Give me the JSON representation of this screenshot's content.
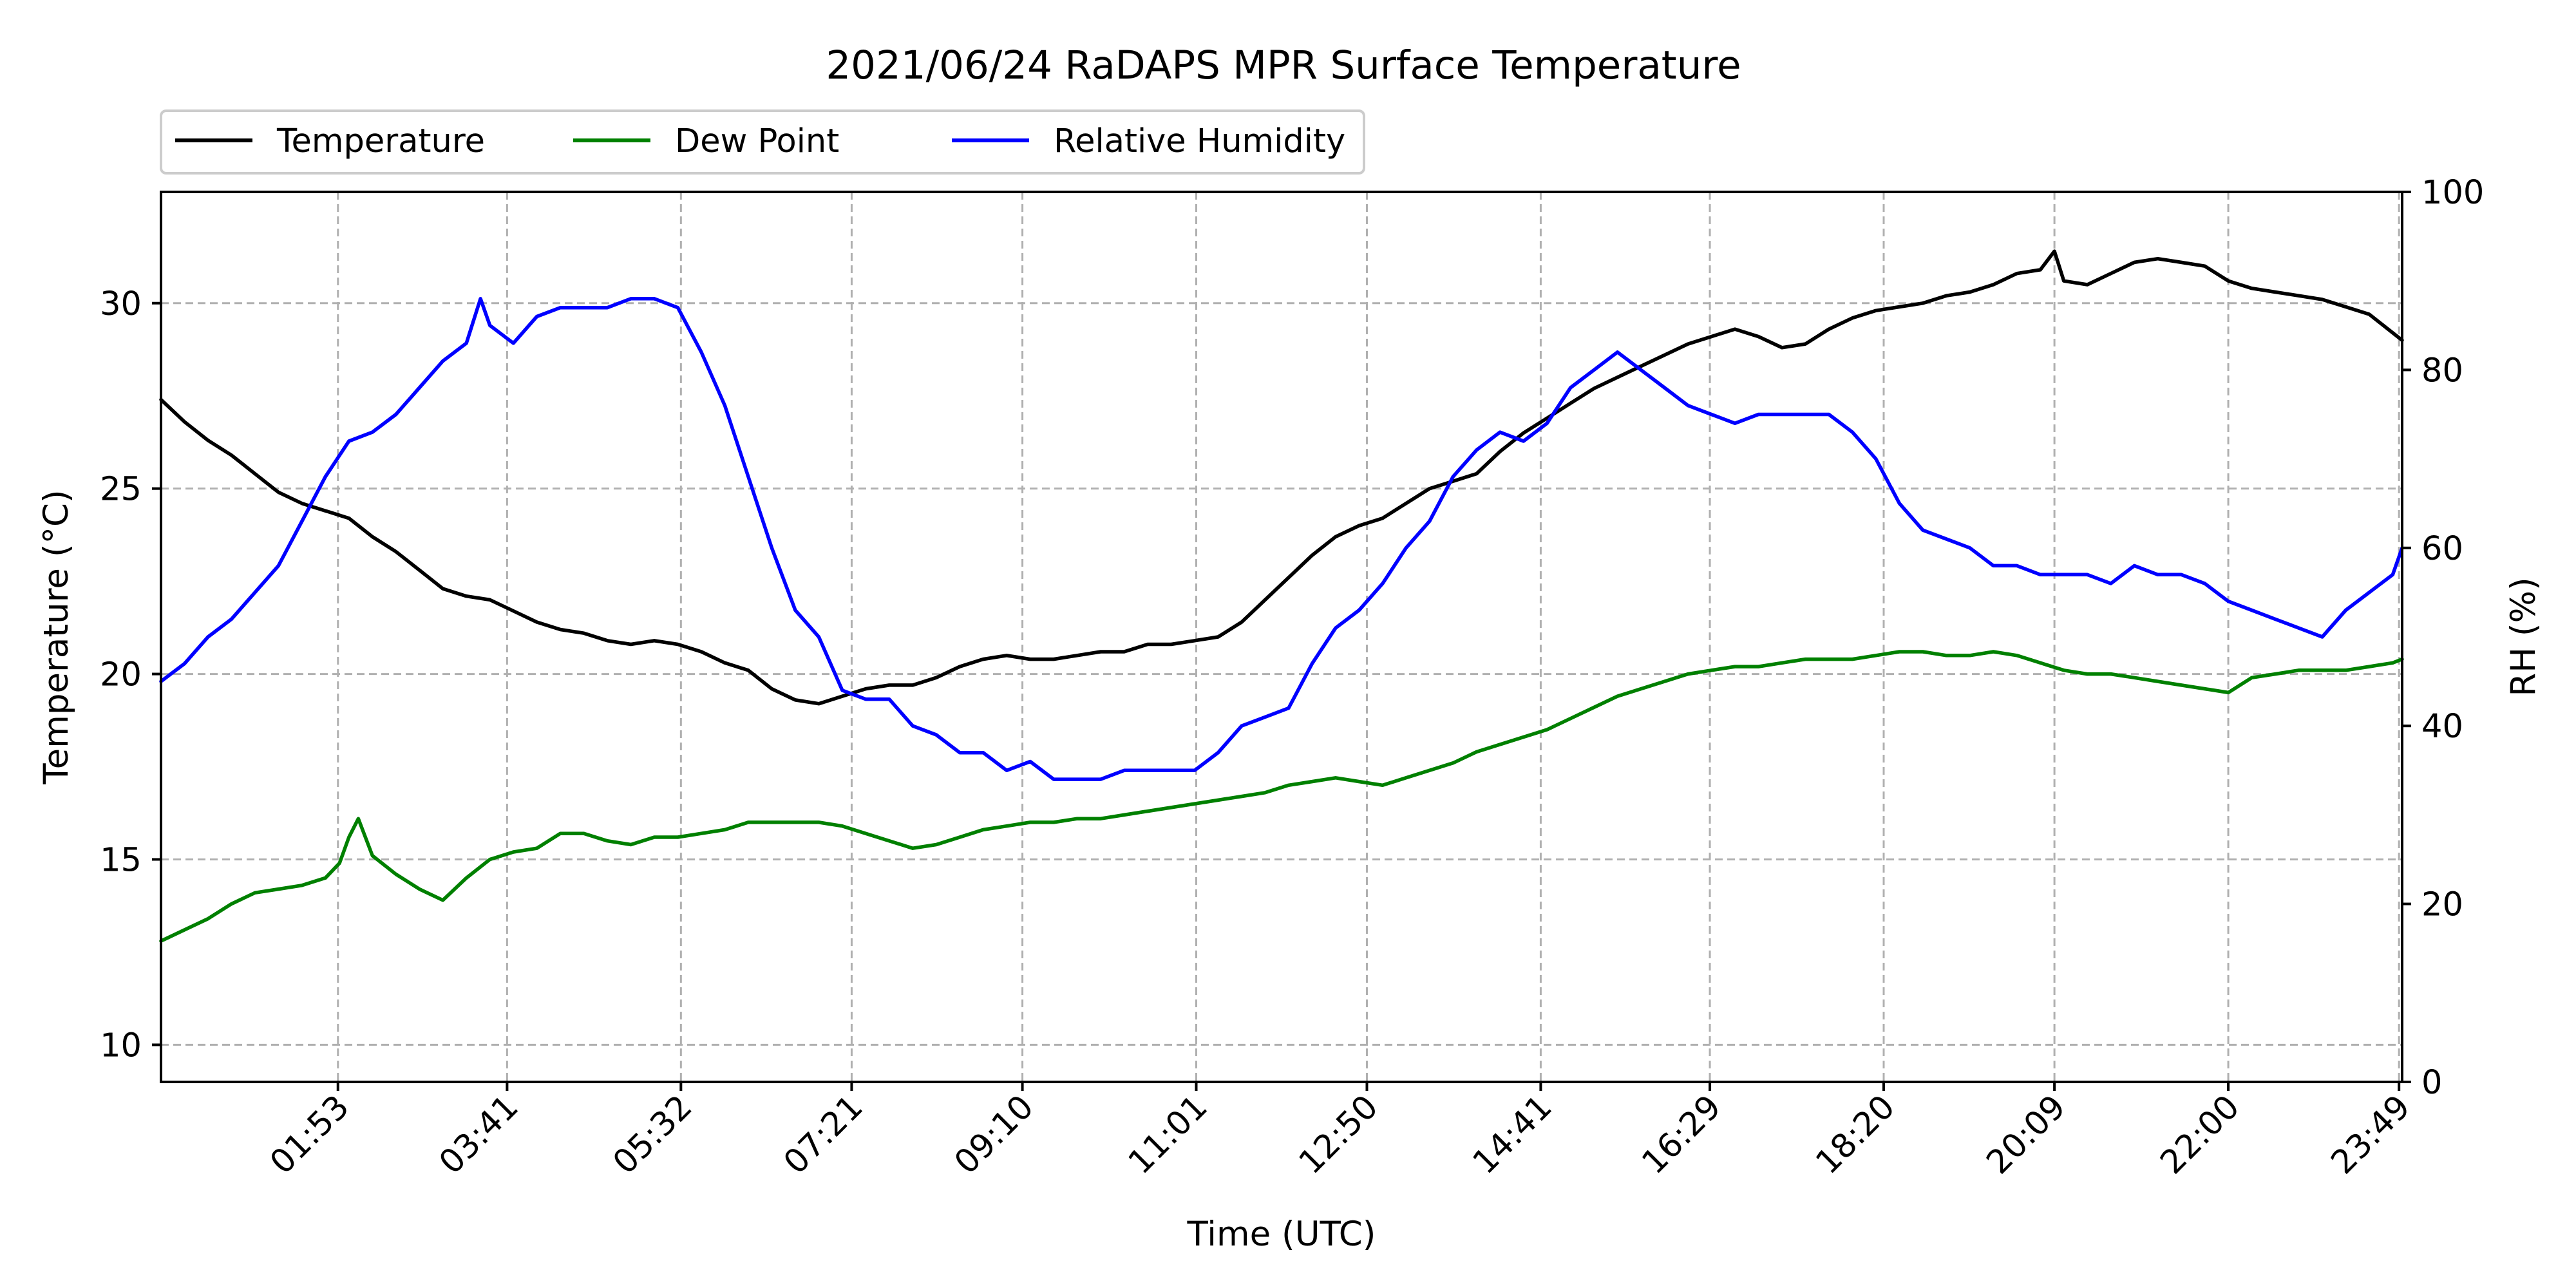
{
  "chart_data": {
    "type": "line",
    "title": "2021/06/24 RaDAPS MPR Surface Temperature",
    "xlabel": "Time (UTC)",
    "ylabel_left": "Temperature ($^\\circ$C)",
    "ylabel_left_display": "Temperature (°C)",
    "ylabel_right": "RH (%)",
    "x_unit": "hours UTC",
    "xlim": [
      0.0,
      23.85
    ],
    "ylim_left": [
      9,
      33
    ],
    "ylim_right": [
      0,
      100
    ],
    "x_ticks": [
      {
        "label": "01:53",
        "value": 1.883
      },
      {
        "label": "03:41",
        "value": 3.683
      },
      {
        "label": "05:32",
        "value": 5.533
      },
      {
        "label": "07:21",
        "value": 7.35
      },
      {
        "label": "09:10",
        "value": 9.167
      },
      {
        "label": "11:01",
        "value": 11.017
      },
      {
        "label": "12:50",
        "value": 12.833
      },
      {
        "label": "14:41",
        "value": 14.683
      },
      {
        "label": "16:29",
        "value": 16.483
      },
      {
        "label": "18:20",
        "value": 18.333
      },
      {
        "label": "20:09",
        "value": 20.15
      },
      {
        "label": "22:00",
        "value": 22.0
      },
      {
        "label": "23:49",
        "value": 23.817
      }
    ],
    "y_ticks_left": [
      10,
      15,
      20,
      25,
      30
    ],
    "y_ticks_right": [
      0,
      20,
      40,
      60,
      80,
      100
    ],
    "grid": true,
    "legend_position": "above-left, outside plot",
    "series": [
      {
        "name": "Temperature",
        "color": "#000000",
        "axis": "left",
        "x": [
          0.0,
          0.25,
          0.5,
          0.75,
          1.0,
          1.25,
          1.5,
          1.75,
          2.0,
          2.25,
          2.5,
          2.75,
          3.0,
          3.25,
          3.5,
          3.75,
          4.0,
          4.25,
          4.5,
          4.75,
          5.0,
          5.25,
          5.5,
          5.75,
          6.0,
          6.25,
          6.5,
          6.75,
          7.0,
          7.25,
          7.5,
          7.75,
          8.0,
          8.25,
          8.5,
          8.75,
          9.0,
          9.25,
          9.5,
          9.75,
          10.0,
          10.25,
          10.5,
          10.75,
          11.0,
          11.25,
          11.5,
          11.75,
          12.0,
          12.25,
          12.5,
          12.75,
          13.0,
          13.25,
          13.5,
          13.75,
          14.0,
          14.25,
          14.5,
          14.75,
          15.0,
          15.25,
          15.5,
          15.75,
          16.0,
          16.25,
          16.5,
          16.75,
          17.0,
          17.25,
          17.5,
          17.75,
          18.0,
          18.25,
          18.5,
          18.75,
          19.0,
          19.25,
          19.5,
          19.75,
          20.0,
          20.15,
          20.25,
          20.5,
          20.75,
          21.0,
          21.25,
          21.5,
          21.75,
          22.0,
          22.25,
          22.5,
          22.75,
          23.0,
          23.25,
          23.5,
          23.75,
          23.85
        ],
        "values": [
          27.4,
          26.8,
          26.3,
          25.9,
          25.4,
          24.9,
          24.6,
          24.4,
          24.2,
          23.7,
          23.3,
          22.8,
          22.3,
          22.1,
          22.0,
          21.7,
          21.4,
          21.2,
          21.1,
          20.9,
          20.8,
          20.9,
          20.8,
          20.6,
          20.3,
          20.1,
          19.6,
          19.3,
          19.2,
          19.4,
          19.6,
          19.7,
          19.7,
          19.9,
          20.2,
          20.4,
          20.5,
          20.4,
          20.4,
          20.5,
          20.6,
          20.6,
          20.8,
          20.8,
          20.9,
          21.0,
          21.4,
          22.0,
          22.6,
          23.2,
          23.7,
          24.0,
          24.2,
          24.6,
          25.0,
          25.2,
          25.4,
          26.0,
          26.5,
          26.9,
          27.3,
          27.7,
          28.0,
          28.3,
          28.6,
          28.9,
          29.1,
          29.3,
          29.1,
          28.8,
          28.9,
          29.3,
          29.6,
          29.8,
          29.9,
          30.0,
          30.2,
          30.3,
          30.5,
          30.8,
          30.9,
          31.4,
          30.6,
          30.5,
          30.8,
          31.1,
          31.2,
          31.1,
          31.0,
          30.6,
          30.4,
          30.3,
          30.2,
          30.1,
          29.9,
          29.7,
          29.2,
          29.0
        ]
      },
      {
        "name": "Dew Point",
        "color": "#008000",
        "axis": "left",
        "x": [
          0.0,
          0.25,
          0.5,
          0.75,
          1.0,
          1.25,
          1.5,
          1.75,
          1.9,
          2.0,
          2.1,
          2.25,
          2.5,
          2.75,
          3.0,
          3.25,
          3.5,
          3.75,
          4.0,
          4.25,
          4.5,
          4.75,
          5.0,
          5.25,
          5.5,
          5.75,
          6.0,
          6.25,
          6.5,
          6.75,
          7.0,
          7.25,
          7.5,
          7.75,
          8.0,
          8.25,
          8.5,
          8.75,
          9.0,
          9.25,
          9.5,
          9.75,
          10.0,
          10.25,
          10.5,
          10.75,
          11.0,
          11.25,
          11.5,
          11.75,
          12.0,
          12.25,
          12.5,
          12.75,
          13.0,
          13.25,
          13.5,
          13.75,
          14.0,
          14.25,
          14.5,
          14.75,
          15.0,
          15.25,
          15.5,
          15.75,
          16.0,
          16.25,
          16.5,
          16.75,
          17.0,
          17.25,
          17.5,
          17.75,
          18.0,
          18.25,
          18.5,
          18.75,
          19.0,
          19.25,
          19.5,
          19.75,
          20.0,
          20.25,
          20.5,
          20.75,
          21.0,
          21.25,
          21.5,
          21.75,
          22.0,
          22.25,
          22.5,
          22.75,
          23.0,
          23.25,
          23.5,
          23.75,
          23.85
        ],
        "values": [
          12.8,
          13.1,
          13.4,
          13.8,
          14.1,
          14.2,
          14.3,
          14.5,
          14.9,
          15.6,
          16.1,
          15.1,
          14.6,
          14.2,
          13.9,
          14.5,
          15.0,
          15.2,
          15.3,
          15.7,
          15.7,
          15.5,
          15.4,
          15.6,
          15.6,
          15.7,
          15.8,
          16.0,
          16.0,
          16.0,
          16.0,
          15.9,
          15.7,
          15.5,
          15.3,
          15.4,
          15.6,
          15.8,
          15.9,
          16.0,
          16.0,
          16.1,
          16.1,
          16.2,
          16.3,
          16.4,
          16.5,
          16.6,
          16.7,
          16.8,
          17.0,
          17.1,
          17.2,
          17.1,
          17.0,
          17.2,
          17.4,
          17.6,
          17.9,
          18.1,
          18.3,
          18.5,
          18.8,
          19.1,
          19.4,
          19.6,
          19.8,
          20.0,
          20.1,
          20.2,
          20.2,
          20.3,
          20.4,
          20.4,
          20.4,
          20.5,
          20.6,
          20.6,
          20.5,
          20.5,
          20.6,
          20.5,
          20.3,
          20.1,
          20.0,
          20.0,
          19.9,
          19.8,
          19.7,
          19.6,
          19.5,
          19.9,
          20.0,
          20.1,
          20.1,
          20.1,
          20.2,
          20.3,
          20.4
        ]
      },
      {
        "name": "Relative Humidity",
        "color": "#0000ff",
        "axis": "right",
        "x": [
          0.0,
          0.25,
          0.5,
          0.75,
          1.0,
          1.25,
          1.5,
          1.75,
          2.0,
          2.25,
          2.5,
          2.75,
          3.0,
          3.25,
          3.4,
          3.5,
          3.75,
          4.0,
          4.25,
          4.5,
          4.75,
          5.0,
          5.25,
          5.5,
          5.75,
          6.0,
          6.25,
          6.5,
          6.75,
          7.0,
          7.25,
          7.5,
          7.75,
          8.0,
          8.25,
          8.5,
          8.75,
          9.0,
          9.25,
          9.5,
          9.75,
          10.0,
          10.25,
          10.5,
          10.75,
          11.0,
          11.25,
          11.5,
          11.75,
          12.0,
          12.25,
          12.5,
          12.75,
          13.0,
          13.25,
          13.5,
          13.75,
          14.0,
          14.25,
          14.5,
          14.75,
          15.0,
          15.25,
          15.5,
          15.75,
          16.0,
          16.25,
          16.5,
          16.75,
          17.0,
          17.25,
          17.5,
          17.75,
          18.0,
          18.25,
          18.5,
          18.75,
          19.0,
          19.25,
          19.5,
          19.75,
          20.0,
          20.25,
          20.5,
          20.75,
          21.0,
          21.25,
          21.5,
          21.75,
          22.0,
          22.25,
          22.5,
          22.75,
          23.0,
          23.25,
          23.5,
          23.75,
          23.85
        ],
        "values": [
          45,
          47,
          50,
          52,
          55,
          58,
          63,
          68,
          72,
          73,
          75,
          78,
          81,
          83,
          88,
          85,
          83,
          86,
          87,
          87,
          87,
          88,
          88,
          87,
          82,
          76,
          68,
          60,
          53,
          50,
          44,
          43,
          43,
          40,
          39,
          37,
          37,
          35,
          36,
          34,
          34,
          34,
          35,
          35,
          35,
          35,
          37,
          40,
          41,
          42,
          47,
          51,
          53,
          56,
          60,
          63,
          68,
          71,
          73,
          72,
          74,
          78,
          80,
          82,
          80,
          78,
          76,
          75,
          74,
          75,
          75,
          75,
          75,
          73,
          70,
          65,
          62,
          61,
          60,
          58,
          58,
          57,
          57,
          57,
          56,
          58,
          57,
          57,
          56,
          54,
          53,
          52,
          51,
          50,
          53,
          55,
          57,
          60
        ]
      }
    ]
  }
}
